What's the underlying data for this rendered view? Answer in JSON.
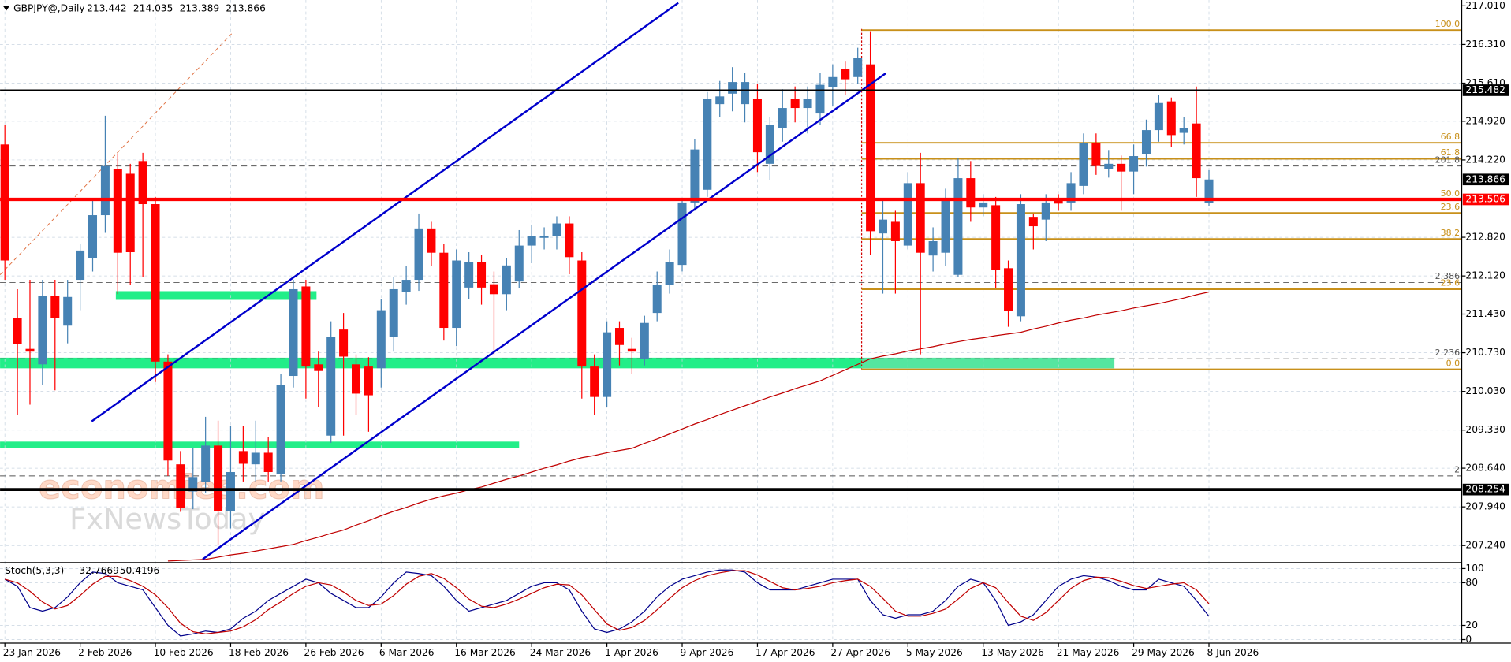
{
  "chart_data": [
    {
      "type": "candlestick",
      "title": "GBPJPY@,Daily",
      "x": [
        "23 Jan 2026",
        null,
        null,
        null,
        null,
        null,
        "2 Feb 2026",
        null,
        null,
        null,
        null,
        null,
        "10 Feb 2026",
        null,
        null,
        null,
        null,
        null,
        "18 Feb 2026",
        null,
        null,
        null,
        null,
        null,
        "26 Feb 2026",
        null,
        null,
        null,
        null,
        null,
        "6 Mar 2026",
        null,
        null,
        null,
        null,
        null,
        "16 Mar 2026",
        null,
        null,
        null,
        null,
        null,
        "24 Mar 2026",
        null,
        null,
        null,
        null,
        null,
        "1 Apr 2026",
        null,
        null,
        null,
        null,
        null,
        "9 Apr 2026",
        null,
        null,
        null,
        null,
        null,
        "17 Apr 2026",
        null,
        null,
        null,
        null,
        null,
        "27 Apr 2026",
        null,
        null,
        null,
        null,
        null,
        "5 May 2026",
        null,
        null,
        null,
        null,
        null,
        "13 May 2026",
        null,
        null,
        null,
        null,
        null,
        "21 May 2026",
        null,
        null,
        null,
        null,
        null,
        "29 May 2026",
        null,
        null,
        null,
        null,
        null,
        "8 Jun 2026"
      ],
      "open": [
        214.5,
        211.36,
        210.8,
        210.52,
        211.76,
        211.22,
        212.05,
        212.44,
        213.22,
        214.06,
        213.97,
        214.2,
        213.42,
        210.57,
        208.71,
        208.22,
        208.39,
        209.05,
        207.87,
        208.95,
        208.71,
        208.92,
        208.53,
        210.31,
        211.93,
        210.52,
        209.23,
        211.15,
        210.52,
        210.48,
        210.45,
        211.01,
        211.83,
        212.05,
        212.98,
        212.54,
        211.18,
        211.91,
        212.37,
        211.97,
        211.79,
        212.02,
        212.67,
        212.81,
        212.84,
        213.07,
        212.4,
        210.48,
        209.93,
        211.18,
        210.8,
        210.62,
        211.45,
        211.96,
        212.32,
        213.45,
        213.68,
        215.23,
        215.42,
        215.23,
        215.32,
        214.15,
        214.8,
        215.32,
        215.16,
        215.06,
        215.54,
        215.86,
        215.72,
        215.95,
        212.89,
        213.1,
        212.67,
        213.8,
        212.49,
        212.54,
        212.14,
        213.89,
        213.36,
        213.4,
        212.26,
        211.39,
        213.19,
        213.14,
        213.49,
        213.45,
        213.75,
        214.53,
        214.06,
        214.15,
        214.01,
        214.32,
        214.76,
        215.28,
        214.71,
        214.88,
        213.442
      ],
      "high": [
        214.85,
        211.88,
        212.05,
        212.05,
        212.05,
        212.05,
        212.7,
        213.5,
        215.02,
        214.32,
        214.15,
        214.35,
        213.55,
        210.7,
        208.95,
        209.0,
        209.57,
        209.5,
        209.4,
        209.4,
        209.5,
        209.2,
        210.35,
        212.05,
        212.05,
        210.75,
        211.3,
        211.45,
        210.7,
        210.65,
        211.7,
        212.1,
        212.3,
        213.25,
        213.1,
        212.7,
        212.6,
        212.55,
        212.5,
        212.2,
        212.45,
        212.95,
        213.05,
        213.0,
        213.2,
        213.2,
        212.55,
        210.7,
        211.3,
        211.3,
        211.0,
        211.4,
        212.2,
        212.6,
        213.5,
        214.6,
        215.45,
        215.65,
        215.9,
        215.8,
        215.6,
        215.0,
        215.5,
        215.55,
        215.55,
        215.8,
        215.95,
        216.0,
        216.25,
        216.55,
        213.5,
        213.3,
        214.0,
        214.35,
        213.0,
        213.7,
        214.25,
        214.2,
        213.6,
        213.55,
        212.4,
        213.6,
        213.25,
        213.6,
        213.6,
        214.0,
        214.7,
        214.7,
        214.4,
        214.3,
        214.5,
        214.95,
        215.4,
        215.35,
        215.0,
        215.55,
        214.035
      ],
      "low": [
        212.05,
        209.61,
        209.79,
        210.14,
        210.05,
        210.9,
        211.5,
        212.2,
        212.9,
        211.79,
        211.95,
        212.1,
        210.2,
        208.5,
        207.85,
        207.9,
        208.2,
        207.25,
        207.55,
        208.4,
        208.4,
        208.4,
        208.4,
        210.1,
        209.9,
        209.75,
        209.1,
        209.23,
        209.6,
        209.3,
        210.1,
        210.75,
        211.6,
        211.85,
        212.3,
        210.95,
        210.85,
        211.7,
        211.6,
        210.7,
        211.5,
        211.9,
        212.35,
        212.6,
        212.6,
        212.15,
        209.9,
        209.6,
        209.75,
        210.5,
        210.35,
        210.5,
        211.3,
        211.8,
        212.2,
        213.3,
        213.55,
        215.0,
        215.1,
        214.9,
        214.0,
        213.85,
        214.55,
        214.9,
        214.7,
        214.85,
        215.2,
        215.4,
        215.6,
        212.5,
        211.8,
        211.8,
        212.6,
        210.7,
        212.2,
        212.3,
        212.1,
        213.1,
        213.2,
        211.9,
        211.2,
        211.3,
        212.6,
        212.75,
        213.3,
        213.3,
        213.6,
        213.95,
        213.9,
        213.3,
        213.6,
        214.1,
        214.55,
        214.45,
        214.5,
        213.55,
        213.389
      ],
      "close": [
        212.4,
        210.89,
        210.75,
        211.76,
        211.36,
        211.74,
        212.58,
        213.22,
        214.11,
        212.54,
        212.55,
        213.42,
        210.57,
        208.78,
        207.92,
        208.48,
        209.05,
        207.87,
        208.57,
        208.72,
        208.92,
        208.57,
        210.14,
        211.88,
        210.48,
        210.4,
        211.01,
        210.66,
        209.99,
        209.96,
        211.5,
        211.88,
        212.05,
        212.98,
        212.54,
        211.18,
        212.4,
        212.37,
        211.91,
        211.79,
        212.31,
        212.67,
        212.84,
        212.84,
        213.07,
        212.46,
        210.48,
        209.93,
        211.1,
        210.87,
        210.75,
        211.27,
        211.96,
        212.37,
        213.45,
        214.41,
        215.32,
        215.37,
        215.63,
        215.63,
        214.36,
        214.85,
        215.16,
        215.16,
        215.33,
        215.58,
        215.72,
        215.68,
        216.07,
        212.93,
        213.14,
        212.75,
        213.8,
        212.54,
        212.75,
        213.49,
        213.89,
        213.36,
        213.45,
        212.23,
        211.48,
        213.42,
        213.02,
        213.45,
        213.43,
        213.8,
        214.53,
        214.11,
        214.15,
        214.01,
        214.29,
        214.76,
        215.25,
        214.67,
        214.8,
        213.89,
        213.866
      ],
      "up_color": "#4682b4",
      "down_color": "#ff0000",
      "ma": {
        "color": "#c00000",
        "values": [
          null,
          null,
          null,
          null,
          null,
          null,
          null,
          null,
          null,
          null,
          null,
          null,
          null,
          206.96,
          206.97,
          206.98,
          206.99,
          207.03,
          207.07,
          207.1,
          207.14,
          207.18,
          207.22,
          207.26,
          207.33,
          207.39,
          207.46,
          207.52,
          207.61,
          207.69,
          207.78,
          207.86,
          207.93,
          208.01,
          208.08,
          208.14,
          208.19,
          208.25,
          208.3,
          208.37,
          208.44,
          208.5,
          208.57,
          208.64,
          208.7,
          208.77,
          208.83,
          208.87,
          208.92,
          208.96,
          209.0,
          209.09,
          209.17,
          209.26,
          209.35,
          209.44,
          209.52,
          209.61,
          209.69,
          209.77,
          209.85,
          209.93,
          210.0,
          210.08,
          210.15,
          210.22,
          210.32,
          210.42,
          210.52,
          210.62,
          210.67,
          210.71,
          210.76,
          210.8,
          210.84,
          210.89,
          210.93,
          210.97,
          211.0,
          211.04,
          211.07,
          211.1,
          211.16,
          211.21,
          211.27,
          211.32,
          211.36,
          211.41,
          211.45,
          211.49,
          211.54,
          211.58,
          211.62,
          211.67,
          211.72,
          211.78,
          211.83
        ]
      },
      "ylim": [
        206.94,
        217.115
      ],
      "yticks": [
        {
          "value": 217.01,
          "label": "217.010"
        },
        {
          "value": 216.31,
          "label": "216.310"
        },
        {
          "value": 215.61,
          "label": "215.610"
        },
        {
          "value": 214.92,
          "label": "214.920"
        },
        {
          "value": 214.22,
          "label": "214.220"
        },
        {
          "value": 212.82,
          "label": "212.820"
        },
        {
          "value": 212.12,
          "label": "212.120"
        },
        {
          "value": 211.43,
          "label": "211.430"
        },
        {
          "value": 210.73,
          "label": "210.730"
        },
        {
          "value": 210.03,
          "label": "210.030"
        },
        {
          "value": 209.33,
          "label": "209.330"
        },
        {
          "value": 208.64,
          "label": "208.640"
        },
        {
          "value": 207.94,
          "label": "207.940"
        },
        {
          "value": 207.24,
          "label": "207.240"
        }
      ],
      "grid": true,
      "levels": [
        {
          "value": 215.482,
          "color": "#000000",
          "width": 1.5
        },
        {
          "value": 213.506,
          "color": "#ff0000",
          "width": 3.5
        },
        {
          "value": 208.254,
          "color": "#000000",
          "width": 3
        }
      ],
      "annotations": [
        {
          "label": "100.0",
          "value": 216.57,
          "color": "#c8901a",
          "dash": false
        },
        {
          "label": "66.8",
          "value": 214.53,
          "color": "#c8901a",
          "dash": false
        },
        {
          "label": "61.8",
          "value": 214.24,
          "color": "#c8901a",
          "dash": false
        },
        {
          "label": "201.8",
          "value": 214.11,
          "color": "#555555",
          "dash": true
        },
        {
          "label": "50.0",
          "value": 213.5,
          "color": "#c8901a",
          "dash": false
        },
        {
          "label": "23.6",
          "value": 213.26,
          "color": "#c8901a",
          "dash": false
        },
        {
          "label": "38.2",
          "value": 212.79,
          "color": "#c8901a",
          "dash": false
        },
        {
          "label": "2.386",
          "value": 212.0,
          "color": "#555555",
          "dash": true
        },
        {
          "label": "23.6",
          "value": 211.88,
          "color": "#c8901a",
          "dash": false
        },
        {
          "label": "2.236",
          "value": 210.62,
          "color": "#555555",
          "dash": true
        },
        {
          "label": "0.0",
          "value": 210.43,
          "color": "#c8901a",
          "dash": false
        },
        {
          "label": "2",
          "value": 208.5,
          "color": "#555555",
          "dash": true
        }
      ],
      "watermark": [
        "economies.com",
        "FxNewsToday"
      ]
    },
    {
      "type": "line",
      "title": "Stoch(5,3,3)",
      "series": [
        {
          "color": "#00008b",
          "values": [
            85,
            75,
            45,
            40,
            45,
            60,
            80,
            95,
            93,
            80,
            75,
            70,
            45,
            20,
            5,
            8,
            12,
            10,
            15,
            30,
            40,
            55,
            65,
            75,
            85,
            80,
            65,
            55,
            45,
            45,
            60,
            80,
            95,
            93,
            90,
            75,
            55,
            40,
            45,
            50,
            55,
            65,
            75,
            80,
            80,
            70,
            40,
            15,
            10,
            15,
            25,
            40,
            60,
            75,
            85,
            90,
            95,
            98,
            98,
            95,
            80,
            70,
            70,
            70,
            75,
            80,
            85,
            85,
            85,
            55,
            35,
            30,
            35,
            35,
            40,
            55,
            75,
            85,
            80,
            55,
            20,
            25,
            35,
            55,
            75,
            85,
            90,
            88,
            83,
            75,
            70,
            70,
            85,
            80,
            75,
            55,
            32.7669
          ]
        },
        {
          "color": "#c00000",
          "values": [
            85,
            80,
            68,
            53,
            43,
            48,
            62,
            78,
            89,
            89,
            83,
            75,
            63,
            45,
            23,
            11,
            8,
            10,
            12,
            18,
            28,
            42,
            53,
            65,
            75,
            80,
            77,
            67,
            55,
            48,
            50,
            62,
            78,
            89,
            93,
            86,
            73,
            57,
            47,
            45,
            50,
            57,
            65,
            73,
            78,
            77,
            63,
            42,
            22,
            13,
            17,
            27,
            42,
            58,
            73,
            83,
            90,
            94,
            97,
            97,
            91,
            82,
            73,
            70,
            72,
            75,
            80,
            83,
            85,
            75,
            58,
            40,
            33,
            33,
            37,
            43,
            57,
            72,
            80,
            73,
            52,
            33,
            27,
            38,
            55,
            72,
            83,
            88,
            87,
            82,
            76,
            72,
            75,
            78,
            80,
            70,
            50.4196
          ]
        }
      ],
      "ylim": [
        -5,
        105
      ],
      "yticks": [
        100,
        80,
        20,
        0
      ],
      "grid": true
    }
  ]
}
